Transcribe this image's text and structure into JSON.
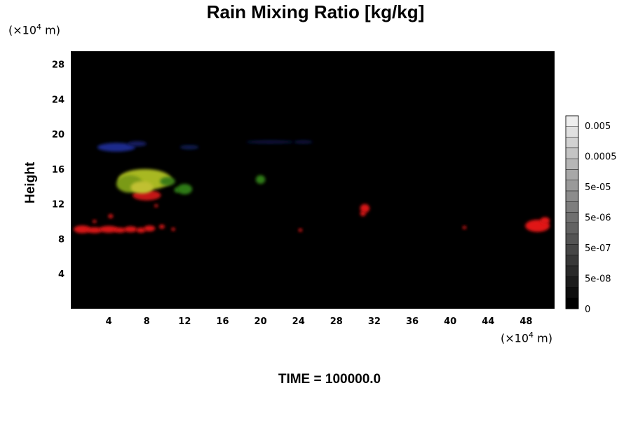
{
  "title": "Rain Mixing Ratio [kg/kg]",
  "footer": "TIME = 100000.0",
  "chart_data": {
    "type": "heatmap",
    "title": "Rain Mixing Ratio [kg/kg]",
    "ylabel": "Height",
    "xlabel": "",
    "x_unit": {
      "prefix": "(×10",
      "exp": "4",
      "suffix": " m)"
    },
    "y_unit": {
      "prefix": "(×10",
      "exp": "4",
      "suffix": " m)"
    },
    "xlim": [
      0,
      51
    ],
    "ylim": [
      0,
      29.5
    ],
    "xticks": [
      4,
      8,
      12,
      16,
      20,
      24,
      28,
      32,
      36,
      40,
      44,
      48
    ],
    "yticks": [
      4,
      8,
      12,
      16,
      20,
      24,
      28
    ],
    "background_color": "#000000",
    "colorbar": {
      "labels": [
        "0.005",
        "0.0005",
        "5e-05",
        "5e-06",
        "5e-07",
        "5e-08",
        "0"
      ],
      "colors": [
        "#000000",
        "#0e0e0e",
        "#1c1c1c",
        "#2a2a2a",
        "#383838",
        "#464646",
        "#545454",
        "#626262",
        "#707070",
        "#7e7e7e",
        "#8c8c8c",
        "#9a9a9a",
        "#a8a8a8",
        "#b6b6b6",
        "#c4c4c4",
        "#d2d2d2",
        "#e0e0e0",
        "#eeeeee"
      ]
    },
    "blobs": [
      {
        "x": 1.2,
        "y": 9.1,
        "rx": 0.9,
        "ry": 0.45,
        "color": "#d81818"
      },
      {
        "x": 2.5,
        "y": 9.0,
        "rx": 0.8,
        "ry": 0.35,
        "color": "#d81818"
      },
      {
        "x": 4.0,
        "y": 9.1,
        "rx": 1.0,
        "ry": 0.4,
        "color": "#d81818"
      },
      {
        "x": 5.2,
        "y": 9.0,
        "rx": 0.6,
        "ry": 0.3,
        "color": "#d81818"
      },
      {
        "x": 6.3,
        "y": 9.1,
        "rx": 0.7,
        "ry": 0.35,
        "color": "#d81818"
      },
      {
        "x": 7.4,
        "y": 9.0,
        "rx": 0.5,
        "ry": 0.3,
        "color": "#d81818"
      },
      {
        "x": 8.3,
        "y": 9.2,
        "rx": 0.6,
        "ry": 0.35,
        "color": "#d81818"
      },
      {
        "x": 9.6,
        "y": 9.4,
        "rx": 0.3,
        "ry": 0.25,
        "color": "#d81818"
      },
      {
        "x": 10.8,
        "y": 9.1,
        "rx": 0.2,
        "ry": 0.2,
        "color": "#d81818"
      },
      {
        "x": 4.2,
        "y": 10.6,
        "rx": 0.25,
        "ry": 0.25,
        "color": "#d81818"
      },
      {
        "x": 2.5,
        "y": 10.0,
        "rx": 0.2,
        "ry": 0.2,
        "color": "#d81818"
      },
      {
        "x": 24.2,
        "y": 9.0,
        "rx": 0.2,
        "ry": 0.2,
        "color": "#d81818"
      },
      {
        "x": 41.5,
        "y": 9.3,
        "rx": 0.2,
        "ry": 0.2,
        "color": "#d81818"
      },
      {
        "x": 31.0,
        "y": 11.5,
        "rx": 0.5,
        "ry": 0.5,
        "color": "#d81818"
      },
      {
        "x": 30.8,
        "y": 10.9,
        "rx": 0.3,
        "ry": 0.3,
        "color": "#d81818"
      },
      {
        "x": 49.2,
        "y": 9.5,
        "rx": 1.3,
        "ry": 0.7,
        "color": "#e01414"
      },
      {
        "x": 50.0,
        "y": 10.1,
        "rx": 0.5,
        "ry": 0.4,
        "color": "#e01414"
      },
      {
        "x": 8.0,
        "y": 13.0,
        "rx": 1.5,
        "ry": 0.6,
        "color": "#c41414"
      },
      {
        "x": 9.0,
        "y": 11.8,
        "rx": 0.2,
        "ry": 0.2,
        "color": "#c41414"
      },
      {
        "x": 7.8,
        "y": 14.8,
        "rx": 2.8,
        "ry": 1.2,
        "color": "#a8b820"
      },
      {
        "x": 6.2,
        "y": 14.3,
        "rx": 1.4,
        "ry": 1.0,
        "color": "#7a9a18"
      },
      {
        "x": 7.5,
        "y": 13.9,
        "rx": 1.2,
        "ry": 0.7,
        "color": "#c0c030"
      },
      {
        "x": 10.2,
        "y": 14.6,
        "rx": 0.8,
        "ry": 0.5,
        "color": "#3a7a18"
      },
      {
        "x": 12.0,
        "y": 13.7,
        "rx": 0.8,
        "ry": 0.6,
        "color": "#2e7a14"
      },
      {
        "x": 11.2,
        "y": 13.6,
        "rx": 0.3,
        "ry": 0.3,
        "color": "#2e7a14"
      },
      {
        "x": 20.0,
        "y": 14.8,
        "rx": 0.5,
        "ry": 0.5,
        "color": "#2e7a14"
      },
      {
        "x": 4.8,
        "y": 18.5,
        "rx": 2.0,
        "ry": 0.5,
        "color": "#1a2a8c"
      },
      {
        "x": 7.0,
        "y": 18.9,
        "rx": 1.0,
        "ry": 0.3,
        "color": "#141e60"
      },
      {
        "x": 12.5,
        "y": 18.5,
        "rx": 1.0,
        "ry": 0.25,
        "color": "#101a50"
      },
      {
        "x": 21.0,
        "y": 19.1,
        "rx": 2.5,
        "ry": 0.2,
        "color": "#0c1440"
      },
      {
        "x": 24.5,
        "y": 19.1,
        "rx": 1.0,
        "ry": 0.2,
        "color": "#0c1440"
      }
    ]
  }
}
